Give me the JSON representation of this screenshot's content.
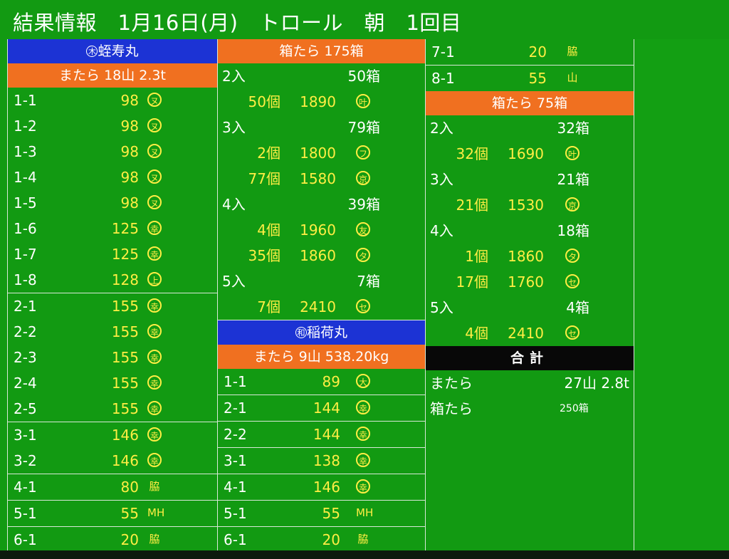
{
  "title": "結果情報　1月16日(月)　トロール　朝　1回目",
  "col1": {
    "boat_mark": "木",
    "boat_name": "蛭寿丸",
    "sub_header": "またら 18山 2.3t",
    "rows": [
      {
        "id": "1-1",
        "val": "98",
        "mark": "ヌ"
      },
      {
        "id": "1-2",
        "val": "98",
        "mark": "ヌ"
      },
      {
        "id": "1-3",
        "val": "98",
        "mark": "ヌ"
      },
      {
        "id": "1-4",
        "val": "98",
        "mark": "ヌ"
      },
      {
        "id": "1-5",
        "val": "98",
        "mark": "ヌ"
      },
      {
        "id": "1-6",
        "val": "125",
        "mark": "幸"
      },
      {
        "id": "1-7",
        "val": "125",
        "mark": "幸"
      },
      {
        "id": "1-8",
        "val": "128",
        "mark": "上"
      },
      {
        "id": "2-1",
        "val": "155",
        "mark": "幸"
      },
      {
        "id": "2-2",
        "val": "155",
        "mark": "幸"
      },
      {
        "id": "2-3",
        "val": "155",
        "mark": "幸"
      },
      {
        "id": "2-4",
        "val": "155",
        "mark": "幸"
      },
      {
        "id": "2-5",
        "val": "155",
        "mark": "幸"
      },
      {
        "id": "3-1",
        "val": "146",
        "mark": "幸"
      },
      {
        "id": "3-2",
        "val": "146",
        "mark": "幸"
      },
      {
        "id": "4-1",
        "val": "80",
        "mark": "脇"
      },
      {
        "id": "5-1",
        "val": "55",
        "mark": "MH"
      },
      {
        "id": "6-1",
        "val": "20",
        "mark": "脇"
      }
    ]
  },
  "col2": {
    "box_header": "箱たら 175箱",
    "box_rows": [
      {
        "label": "2入",
        "total": "50箱"
      },
      {
        "count": "50個",
        "price": "1890",
        "mark": "叶"
      },
      {
        "label": "3入",
        "total": "79箱"
      },
      {
        "count": "2個",
        "price": "1800",
        "mark": "フ"
      },
      {
        "count": "77個",
        "price": "1580",
        "mark": "京"
      },
      {
        "label": "4入",
        "total": "39箱"
      },
      {
        "count": "4個",
        "price": "1960",
        "mark": "友"
      },
      {
        "count": "35個",
        "price": "1860",
        "mark": "タ"
      },
      {
        "label": "5入",
        "total": "7箱"
      },
      {
        "count": "7個",
        "price": "2410",
        "mark": "セ"
      }
    ],
    "boat_mark": "和",
    "boat_name": "稲荷丸",
    "sub_header": "またら 9山 538.20kg",
    "rows": [
      {
        "id": "1-1",
        "val": "89",
        "mark": "大"
      },
      {
        "id": "2-1",
        "val": "144",
        "mark": "幸"
      },
      {
        "id": "2-2",
        "val": "144",
        "mark": "幸"
      },
      {
        "id": "3-1",
        "val": "138",
        "mark": "幸"
      },
      {
        "id": "4-1",
        "val": "146",
        "mark": "幸"
      },
      {
        "id": "5-1",
        "val": "55",
        "mark": "MH"
      },
      {
        "id": "6-1",
        "val": "20",
        "mark": "脇"
      }
    ]
  },
  "col3": {
    "top_rows": [
      {
        "id": "7-1",
        "val": "20",
        "mark": "脇"
      },
      {
        "id": "8-1",
        "val": "55",
        "mark": "山"
      }
    ],
    "box_header": "箱たら 75箱",
    "box_rows": [
      {
        "label": "2入",
        "total": "32箱"
      },
      {
        "count": "32個",
        "price": "1690",
        "mark": "叶"
      },
      {
        "label": "3入",
        "total": "21箱"
      },
      {
        "count": "21個",
        "price": "1530",
        "mark": "京"
      },
      {
        "label": "4入",
        "total": "18箱"
      },
      {
        "count": "1個",
        "price": "1860",
        "mark": "タ"
      },
      {
        "count": "17個",
        "price": "1760",
        "mark": "セ"
      },
      {
        "label": "5入",
        "total": "4箱"
      },
      {
        "count": "4個",
        "price": "2410",
        "mark": "セ"
      }
    ],
    "total_header": "合計",
    "totals": {
      "matara_label": "またら",
      "matara_value": "27山 2.8t",
      "box_label": "箱たら",
      "box_value": "250箱"
    }
  }
}
